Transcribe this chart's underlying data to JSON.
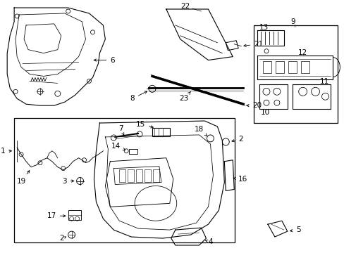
{
  "bg": "#ffffff",
  "lc": "#000000",
  "lw": 0.8,
  "fs": 7.5
}
